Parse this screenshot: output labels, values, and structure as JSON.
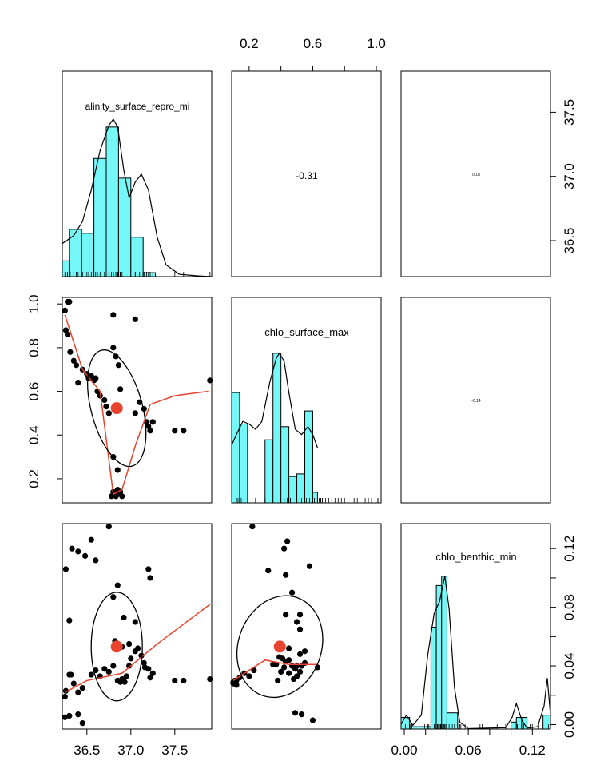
{
  "chart_data": {
    "type": "scatter-matrix",
    "variables": [
      "salinity_surface_repro_min",
      "chlo_surface_max",
      "chlo_benthic_min"
    ],
    "diagonal_labels": [
      "alinity_surface_repro_mi",
      "chlo_surface_max",
      "chlo_benthic_min"
    ],
    "correlations": [
      {
        "row": 0,
        "col": 1,
        "label": "-0.31"
      },
      {
        "row": 0,
        "col": 2,
        "label": "0.18"
      },
      {
        "row": 1,
        "col": 2,
        "label": "-0.14"
      }
    ],
    "axes": {
      "salinity": {
        "range": [
          36.22,
          37.92
        ],
        "ticks": [
          36.5,
          37.0,
          37.5
        ],
        "tick_labels": [
          "36.5",
          "37.0",
          "37.5"
        ]
      },
      "chlo_surface": {
        "range": [
          0.09,
          1.03
        ],
        "ticks": [
          0.2,
          0.4,
          0.6,
          0.8,
          1.0
        ],
        "top_ticks": [
          0.2,
          0.4,
          0.6,
          0.8,
          1.0
        ],
        "top_tick_labels": [
          "0.2",
          "0.6",
          "1.0"
        ],
        "left_tick_labels": [
          "0.2",
          "0.4",
          "0.6",
          "0.8",
          "1.0"
        ]
      },
      "chlo_benthic": {
        "range": [
          -0.003,
          0.137
        ],
        "ticks": [
          0.0,
          0.02,
          0.04,
          0.06,
          0.08,
          0.1,
          0.12
        ],
        "bottom_tick_labels": [
          "0.00",
          "0.06",
          "0.12"
        ],
        "right_tick_labels": [
          "0.00",
          "0.04",
          "0.08",
          "0.12"
        ]
      }
    },
    "histograms": [
      {
        "name": "salinity",
        "bins": [
          {
            "x0": 36.22,
            "x1": 36.3,
            "h": 0.2
          },
          {
            "x0": 36.3,
            "x1": 36.44,
            "h": 0.6
          },
          {
            "x0": 36.44,
            "x1": 36.58,
            "h": 0.55
          },
          {
            "x0": 36.58,
            "x1": 36.72,
            "h": 1.5
          },
          {
            "x0": 36.72,
            "x1": 36.86,
            "h": 1.9
          },
          {
            "x0": 36.86,
            "x1": 37.0,
            "h": 1.25
          },
          {
            "x0": 37.0,
            "x1": 37.14,
            "h": 0.5
          },
          {
            "x0": 37.14,
            "x1": 37.28,
            "h": 0.05
          }
        ],
        "ymax": 2.0,
        "density": [
          [
            36.22,
            0.42
          ],
          [
            36.35,
            0.52
          ],
          [
            36.45,
            0.7
          ],
          [
            36.55,
            1.1
          ],
          [
            36.65,
            1.6
          ],
          [
            36.75,
            1.92
          ],
          [
            36.8,
            2.0
          ],
          [
            36.85,
            1.9
          ],
          [
            36.92,
            1.35
          ],
          [
            36.98,
            1.0
          ],
          [
            37.05,
            1.2
          ],
          [
            37.12,
            1.3
          ],
          [
            37.2,
            1.1
          ],
          [
            37.3,
            0.5
          ],
          [
            37.4,
            0.15
          ],
          [
            37.55,
            0.03
          ],
          [
            37.75,
            0.01
          ],
          [
            37.92,
            0.0
          ]
        ]
      },
      {
        "name": "chlo_surface",
        "bins": [
          {
            "x0": 0.09,
            "x1": 0.14,
            "h": 2.1
          },
          {
            "x0": 0.14,
            "x1": 0.19,
            "h": 1.5
          },
          {
            "x0": 0.3,
            "x1": 0.35,
            "h": 1.2
          },
          {
            "x0": 0.35,
            "x1": 0.4,
            "h": 2.85
          },
          {
            "x0": 0.4,
            "x1": 0.45,
            "h": 1.45
          },
          {
            "x0": 0.45,
            "x1": 0.5,
            "h": 0.5
          },
          {
            "x0": 0.5,
            "x1": 0.55,
            "h": 0.55
          },
          {
            "x0": 0.55,
            "x1": 0.6,
            "h": 1.75
          },
          {
            "x0": 0.6,
            "x1": 0.63,
            "h": 0.2
          }
        ],
        "ymax": 3.0,
        "density": [
          [
            0.09,
            1.1
          ],
          [
            0.12,
            1.3
          ],
          [
            0.16,
            1.55
          ],
          [
            0.2,
            1.5
          ],
          [
            0.24,
            1.4
          ],
          [
            0.28,
            1.55
          ],
          [
            0.33,
            2.3
          ],
          [
            0.37,
            2.75
          ],
          [
            0.39,
            2.85
          ],
          [
            0.42,
            2.7
          ],
          [
            0.45,
            2.1
          ],
          [
            0.49,
            1.4
          ],
          [
            0.53,
            1.3
          ],
          [
            0.57,
            1.45
          ],
          [
            0.6,
            1.3
          ],
          [
            0.63,
            1.05
          ]
        ]
      },
      {
        "name": "chlo_benthic",
        "bins": [
          {
            "x0": -0.003,
            "x1": 0.005,
            "h": 0.25
          },
          {
            "x0": 0.005,
            "x1": 0.025,
            "h": 0.05
          },
          {
            "x0": 0.025,
            "x1": 0.03,
            "h": 2.2
          },
          {
            "x0": 0.03,
            "x1": 0.035,
            "h": 3.1
          },
          {
            "x0": 0.035,
            "x1": 0.04,
            "h": 3.3
          },
          {
            "x0": 0.04,
            "x1": 0.05,
            "h": 0.35
          },
          {
            "x0": 0.1,
            "x1": 0.105,
            "h": 0.15
          },
          {
            "x0": 0.105,
            "x1": 0.11,
            "h": 0.25
          },
          {
            "x0": 0.11,
            "x1": 0.115,
            "h": 0.25
          },
          {
            "x0": 0.13,
            "x1": 0.137,
            "h": 0.3
          }
        ],
        "ymax": 3.4,
        "density": [
          [
            -0.003,
            0.1
          ],
          [
            0.002,
            0.3
          ],
          [
            0.008,
            0.08
          ],
          [
            0.016,
            0.3
          ],
          [
            0.022,
            1.6
          ],
          [
            0.028,
            2.5
          ],
          [
            0.033,
            2.75
          ],
          [
            0.038,
            3.3
          ],
          [
            0.042,
            2.6
          ],
          [
            0.047,
            0.9
          ],
          [
            0.052,
            0.15
          ],
          [
            0.06,
            0.01
          ],
          [
            0.095,
            0.03
          ],
          [
            0.101,
            0.25
          ],
          [
            0.105,
            0.55
          ],
          [
            0.11,
            0.2
          ],
          [
            0.115,
            0.02
          ],
          [
            0.125,
            0.05
          ],
          [
            0.131,
            0.5
          ],
          [
            0.134,
            1.1
          ],
          [
            0.137,
            0.3
          ]
        ]
      }
    ],
    "scatter": {
      "chlo_surface_vs_salinity": [
        [
          36.25,
          0.97
        ],
        [
          36.28,
          1.01
        ],
        [
          36.3,
          1.01
        ],
        [
          36.26,
          0.88
        ],
        [
          36.28,
          0.86
        ],
        [
          36.31,
          0.78
        ],
        [
          36.35,
          0.74
        ],
        [
          36.38,
          0.72
        ],
        [
          36.4,
          0.64
        ],
        [
          36.45,
          0.7
        ],
        [
          36.5,
          0.68
        ],
        [
          36.52,
          0.66
        ],
        [
          36.55,
          0.67
        ],
        [
          36.58,
          0.65
        ],
        [
          36.6,
          0.66
        ],
        [
          36.62,
          0.6
        ],
        [
          36.65,
          0.58
        ],
        [
          36.7,
          0.56
        ],
        [
          36.72,
          0.53
        ],
        [
          36.75,
          0.5
        ],
        [
          36.8,
          0.8
        ],
        [
          36.83,
          0.76
        ],
        [
          36.86,
          0.72
        ],
        [
          36.88,
          0.61
        ],
        [
          36.8,
          0.95
        ],
        [
          37.05,
          0.93
        ],
        [
          36.78,
          0.12
        ],
        [
          36.8,
          0.14
        ],
        [
          36.83,
          0.12
        ],
        [
          36.86,
          0.13
        ],
        [
          36.88,
          0.14
        ],
        [
          36.9,
          0.12
        ],
        [
          36.85,
          0.15
        ],
        [
          37.05,
          0.5
        ],
        [
          37.1,
          0.55
        ],
        [
          37.15,
          0.52
        ],
        [
          37.18,
          0.46
        ],
        [
          37.2,
          0.44
        ],
        [
          37.22,
          0.42
        ],
        [
          37.25,
          0.46
        ],
        [
          37.5,
          0.42
        ],
        [
          37.6,
          0.42
        ],
        [
          37.9,
          0.65
        ],
        [
          36.8,
          0.3
        ],
        [
          36.85,
          0.24
        ]
      ],
      "chlo_surface_ellipse": {
        "cx": 36.84,
        "cy": 0.523,
        "rx_px": 32,
        "ry_px": 75,
        "rotate_deg": -15
      },
      "chlo_surface_mean": [
        36.84,
        0.523
      ],
      "chlo_surface_loess": [
        [
          36.25,
          0.95
        ],
        [
          36.45,
          0.7
        ],
        [
          36.65,
          0.6
        ],
        [
          36.8,
          0.13
        ],
        [
          36.9,
          0.15
        ],
        [
          37.05,
          0.35
        ],
        [
          37.22,
          0.54
        ],
        [
          37.5,
          0.58
        ],
        [
          37.88,
          0.6
        ]
      ],
      "benthic_vs_salinity": [
        [
          36.25,
          0.005
        ],
        [
          36.3,
          0.006
        ],
        [
          36.4,
          0.007
        ],
        [
          36.45,
          0.001
        ],
        [
          36.25,
          0.019
        ],
        [
          36.26,
          0.023
        ],
        [
          36.3,
          0.034
        ],
        [
          36.32,
          0.034
        ],
        [
          36.3,
          0.071
        ],
        [
          36.35,
          0.028
        ],
        [
          36.4,
          0.022
        ],
        [
          36.45,
          0.025
        ],
        [
          36.55,
          0.034
        ],
        [
          36.6,
          0.037
        ],
        [
          36.65,
          0.033
        ],
        [
          36.7,
          0.038
        ],
        [
          36.75,
          0.036
        ],
        [
          36.8,
          0.04
        ],
        [
          36.85,
          0.03
        ],
        [
          36.88,
          0.029
        ],
        [
          36.9,
          0.031
        ],
        [
          36.93,
          0.029
        ],
        [
          36.95,
          0.033
        ],
        [
          36.98,
          0.04
        ],
        [
          37.0,
          0.045
        ],
        [
          37.05,
          0.05
        ],
        [
          37.08,
          0.052
        ],
        [
          37.12,
          0.047
        ],
        [
          37.16,
          0.039
        ],
        [
          37.2,
          0.038
        ],
        [
          37.25,
          0.035
        ],
        [
          37.15,
          0.042
        ],
        [
          37.22,
          0.032
        ],
        [
          37.5,
          0.03
        ],
        [
          37.6,
          0.03
        ],
        [
          37.9,
          0.031
        ],
        [
          36.33,
          0.12
        ],
        [
          36.4,
          0.118
        ],
        [
          36.48,
          0.115
        ],
        [
          36.55,
          0.126
        ],
        [
          36.6,
          0.112
        ],
        [
          36.26,
          0.106
        ],
        [
          36.8,
          0.087
        ],
        [
          36.75,
          0.135
        ],
        [
          36.85,
          0.095
        ],
        [
          37.2,
          0.106
        ],
        [
          37.22,
          0.1
        ],
        [
          36.92,
          0.073
        ],
        [
          36.9,
          0.053
        ],
        [
          37.05,
          0.07
        ],
        [
          36.82,
          0.057
        ],
        [
          36.98,
          0.055
        ]
      ],
      "benthic_sal_ellipse": {
        "cx": 36.84,
        "cy": 0.0532,
        "rx_px": 32,
        "ry_px": 68,
        "rotate_deg": 0
      },
      "benthic_sal_mean": [
        36.84,
        0.0532
      ],
      "benthic_sal_loess": [
        [
          36.25,
          0.022
        ],
        [
          36.5,
          0.03
        ],
        [
          36.9,
          0.035
        ],
        [
          37.3,
          0.055
        ],
        [
          37.9,
          0.082
        ]
      ],
      "benthic_vs_chlo_surface": [
        [
          0.1,
          0.028
        ],
        [
          0.11,
          0.03
        ],
        [
          0.12,
          0.03
        ],
        [
          0.14,
          0.032
        ],
        [
          0.17,
          0.035
        ],
        [
          0.2,
          0.033
        ],
        [
          0.23,
          0.037
        ],
        [
          0.35,
          0.041
        ],
        [
          0.37,
          0.041
        ],
        [
          0.4,
          0.036
        ],
        [
          0.42,
          0.039
        ],
        [
          0.45,
          0.044
        ],
        [
          0.47,
          0.04
        ],
        [
          0.49,
          0.038
        ],
        [
          0.52,
          0.036
        ],
        [
          0.53,
          0.04
        ],
        [
          0.55,
          0.042
        ],
        [
          0.52,
          0.048
        ],
        [
          0.55,
          0.05
        ],
        [
          0.5,
          0.04
        ],
        [
          0.39,
          0.046
        ],
        [
          0.41,
          0.045
        ],
        [
          0.43,
          0.043
        ],
        [
          0.38,
          0.03
        ],
        [
          0.45,
          0.035
        ],
        [
          0.48,
          0.031
        ],
        [
          0.5,
          0.033
        ],
        [
          0.63,
          0.039
        ],
        [
          0.22,
          0.135
        ],
        [
          0.44,
          0.125
        ],
        [
          0.42,
          0.12
        ],
        [
          0.43,
          0.102
        ],
        [
          0.47,
          0.09
        ],
        [
          0.58,
          0.108
        ],
        [
          0.52,
          0.065
        ],
        [
          0.43,
          0.075
        ],
        [
          0.52,
          0.075
        ],
        [
          0.49,
          0.008
        ],
        [
          0.53,
          0.007
        ],
        [
          0.6,
          0.003
        ],
        [
          0.4,
          0.055
        ],
        [
          0.45,
          0.052
        ],
        [
          0.32,
          0.105
        ],
        [
          0.1,
          0.029
        ],
        [
          0.12,
          0.027
        ],
        [
          0.5,
          0.07
        ]
      ],
      "benthic_surf_ellipse": {
        "cx": 0.393,
        "cy": 0.0532,
        "rx_px": 52,
        "ry_px": 65,
        "rotate_deg": 20
      },
      "benthic_surf_mean": [
        0.393,
        0.0532
      ],
      "benthic_surf_loess": [
        [
          0.1,
          0.03
        ],
        [
          0.3,
          0.044
        ],
        [
          0.45,
          0.041
        ],
        [
          0.63,
          0.041
        ]
      ]
    }
  }
}
